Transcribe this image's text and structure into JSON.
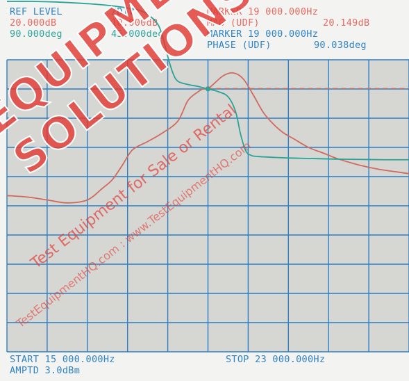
{
  "header": {
    "ref_level_label": "REF LEVEL",
    "div_label": "/DIV",
    "ref_level_mag": "20.000dB",
    "div_mag": "10.000dB",
    "ref_level_phase": "90.000deg",
    "div_phase": "45.000deg",
    "marker1_label": "MARKER 19 000.000Hz",
    "mag_readout_label": "MAG (UDF)",
    "mag_readout_value": "20.149dB",
    "marker2_label": "MARKER 19 000.000Hz",
    "phase_readout_label": "PHASE (UDF)",
    "phase_readout_value": "90.038deg"
  },
  "footer": {
    "start": "START 15 000.000Hz",
    "stop": "STOP 23 000.000Hz",
    "amptd": "AMPTD 3.0dBm"
  },
  "watermark": {
    "big": "EQUIPMENT SOLUTIONS",
    "small": "Test Equipment for Sale or Rental",
    "url": "TestEquipmentHQ.com : www.TestEquipmentHQ.com"
  },
  "colors": {
    "background": "#f3f3f1",
    "grid_bg": "#d6d6d2",
    "grid_lines": "#2c7fc4",
    "magnitude_trace": "#cf6a5f",
    "phase_trace": "#2aa397",
    "watermark_red": "#e23a34"
  },
  "chart_data": {
    "type": "line",
    "title": "",
    "xlabel": "",
    "ylabel": "",
    "xlim": [
      15000,
      23000
    ],
    "grid": true,
    "divisions": {
      "x": 10,
      "y": 10
    },
    "series": [
      {
        "key": "magnitude",
        "unit": "dB",
        "ref": 20.0,
        "per_div": 10.0,
        "x": [
          15000,
          15400,
          15800,
          16200,
          16600,
          16900,
          17100,
          17300,
          17500,
          17800,
          18100,
          18400,
          18600,
          18800,
          18900,
          19000,
          19100,
          19300,
          19500,
          19700,
          19900,
          20100,
          20300,
          20500,
          20700,
          21000,
          21300,
          21600,
          22000,
          22400,
          22800,
          23000
        ],
        "y": [
          -16.5,
          -17.0,
          -18.0,
          -19.0,
          -18.0,
          -14.0,
          -11.0,
          -6.0,
          -0.8,
          2.0,
          5.0,
          9.0,
          16.0,
          19.0,
          20.0,
          20.15,
          21.5,
          24.5,
          25.5,
          23.5,
          18.0,
          12.0,
          8.0,
          5.0,
          3.0,
          0.0,
          -2.0,
          -4.0,
          -6.0,
          -7.5,
          -8.5,
          -9.0
        ]
      },
      {
        "key": "phase",
        "unit": "deg",
        "ref": 90.0,
        "per_div": 45.0,
        "x": [
          15000,
          15500,
          16000,
          16500,
          17000,
          17300,
          17600,
          17800,
          18000,
          18100,
          18200,
          18300,
          18400,
          18600,
          18800,
          18950,
          19000,
          19200,
          19400,
          19550,
          19650,
          19750,
          19850,
          20000,
          20500,
          21000,
          21500,
          22000,
          22500,
          23000
        ],
        "y": [
          225,
          225,
          224,
          222,
          219,
          216,
          212,
          205,
          190,
          170,
          140,
          115,
          102,
          97,
          94,
          91,
          90,
          86,
          78,
          55,
          20,
          -5,
          -12,
          -14,
          -16,
          -17,
          -18,
          -18.5,
          -19,
          -19
        ]
      }
    ],
    "marker": {
      "x": 19000,
      "magnitude": 20.149,
      "phase": 90.038
    },
    "reference_line": {
      "series": "magnitude",
      "y": 20.149,
      "style": "dashed"
    }
  }
}
